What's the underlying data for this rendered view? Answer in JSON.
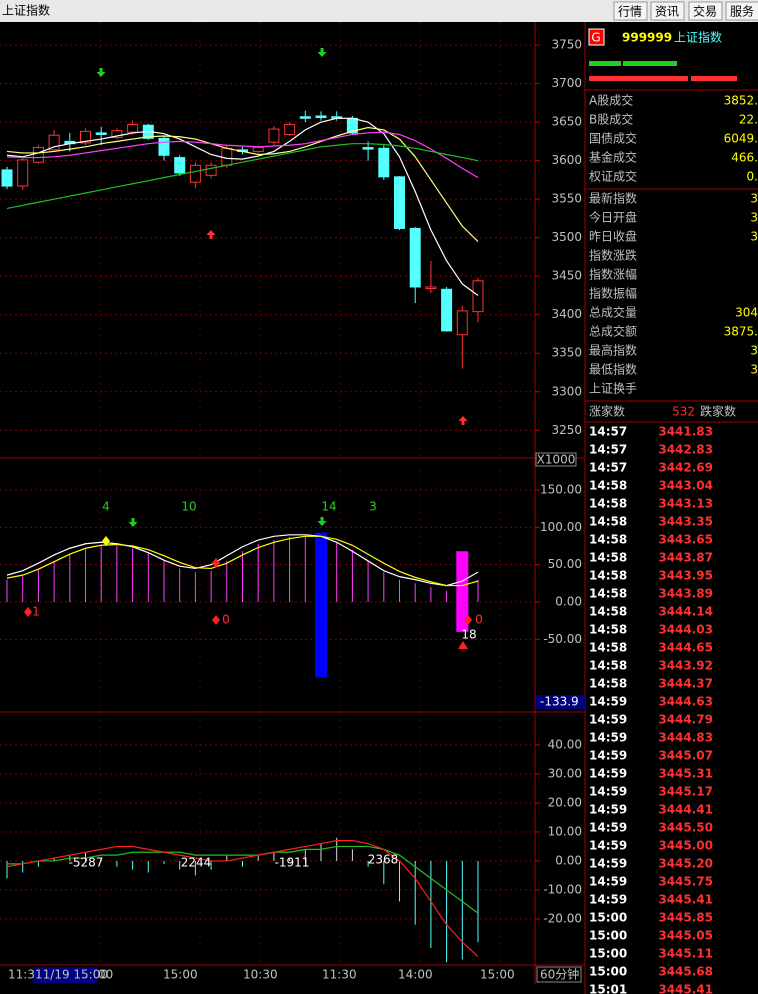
{
  "header": {
    "title": "上证指数",
    "buttons": [
      "行情",
      "资讯",
      "交易",
      "服务"
    ]
  },
  "chart_data": [
    {
      "type": "candlestick",
      "ylim": [
        3214,
        3780
      ],
      "yticks": [
        3250,
        3300,
        3350,
        3400,
        3450,
        3500,
        3550,
        3600,
        3650,
        3700,
        3750
      ],
      "open": [
        3588,
        3567,
        3598,
        3614,
        3625,
        3623,
        3636,
        3630,
        3637,
        3646,
        3629,
        3604,
        3572,
        3581,
        3594,
        3614,
        3612,
        3624,
        3634,
        3657,
        3658,
        3657,
        3655,
        3617,
        3616,
        3579,
        3512,
        3434,
        3433,
        3374,
        3404
      ],
      "high": [
        3592,
        3605,
        3620,
        3640,
        3636,
        3642,
        3644,
        3642,
        3652,
        3648,
        3632,
        3607,
        3598,
        3598,
        3620,
        3618,
        3620,
        3645,
        3650,
        3665,
        3664,
        3664,
        3658,
        3625,
        3620,
        3580,
        3514,
        3470,
        3436,
        3412,
        3448
      ],
      "low": [
        3563,
        3562,
        3596,
        3612,
        3612,
        3620,
        3620,
        3628,
        3634,
        3627,
        3600,
        3580,
        3564,
        3577,
        3590,
        3608,
        3610,
        3620,
        3632,
        3650,
        3652,
        3652,
        3634,
        3600,
        3575,
        3510,
        3415,
        3428,
        3378,
        3330,
        3390
      ],
      "close": [
        3567,
        3601,
        3617,
        3633,
        3622,
        3638,
        3634,
        3639,
        3647,
        3629,
        3607,
        3584,
        3594,
        3594,
        3616,
        3612,
        3617,
        3641,
        3647,
        3655,
        3656,
        3655,
        3636,
        3615,
        3579,
        3512,
        3436,
        3436,
        3379,
        3405,
        3444
      ],
      "up_color": "#ff3232",
      "down_color": "#54ffff",
      "series": [
        {
          "color": "#ffffff",
          "values": [
            3607,
            3605,
            3610,
            3618,
            3622,
            3625,
            3628,
            3632,
            3636,
            3638,
            3635,
            3628,
            3618,
            3608,
            3603,
            3602,
            3606,
            3612,
            3625,
            3640,
            3650,
            3655,
            3655,
            3650,
            3635,
            3605,
            3560,
            3510,
            3470,
            3440,
            3425
          ]
        },
        {
          "color": "#ffff80",
          "values": [
            3612,
            3610,
            3610,
            3612,
            3615,
            3618,
            3622,
            3625,
            3628,
            3631,
            3632,
            3631,
            3628,
            3622,
            3616,
            3612,
            3608,
            3609,
            3612,
            3618,
            3625,
            3632,
            3638,
            3643,
            3640,
            3628,
            3605,
            3575,
            3545,
            3515,
            3495
          ]
        },
        {
          "color": "#ff40ff",
          "values": [
            3605,
            3604,
            3604,
            3605,
            3607,
            3610,
            3613,
            3616,
            3619,
            3622,
            3624,
            3625,
            3624,
            3622,
            3620,
            3619,
            3618,
            3619,
            3620,
            3622,
            3626,
            3630,
            3634,
            3636,
            3637,
            3634,
            3626,
            3615,
            3603,
            3590,
            3578
          ]
        },
        {
          "color": "#20c020",
          "values": [
            3538,
            3542,
            3546,
            3550,
            3554,
            3558,
            3562,
            3566,
            3570,
            3574,
            3578,
            3582,
            3586,
            3590,
            3594,
            3598,
            3602,
            3606,
            3610,
            3614,
            3618,
            3620,
            3622,
            3622,
            3621,
            3619,
            3616,
            3612,
            3608,
            3604,
            3600
          ]
        }
      ]
    },
    {
      "type": "oscillator",
      "scale_label": "X1000",
      "ylim": [
        -147.3,
        176.8
      ],
      "yticks": [
        {
          "value": 150,
          "label": "150.00"
        },
        {
          "value": 100,
          "label": "100.00"
        },
        {
          "value": 50,
          "label": "50.00"
        },
        {
          "value": 0,
          "label": "0.00"
        },
        {
          "value": -50,
          "label": "-50.00"
        }
      ],
      "cursor": {
        "value": -133.9,
        "label": "-133.9"
      },
      "values": [
        30,
        35,
        45,
        55,
        65,
        72,
        75,
        75,
        72,
        65,
        55,
        45,
        40,
        42,
        55,
        68,
        78,
        83,
        87,
        88,
        87,
        80,
        70,
        55,
        40,
        30,
        25,
        20,
        15,
        20,
        30
      ],
      "color": "#ff40ff",
      "spans": [
        {
          "index": 20,
          "range": [
            93,
            -101
          ],
          "color": "#0000ff"
        },
        {
          "index": 29,
          "range": [
            68,
            -40
          ],
          "color": "#ff00ff"
        }
      ],
      "series": [
        {
          "color": "#ffffff",
          "values": [
            36,
            42,
            52,
            63,
            72,
            78,
            80,
            78,
            74,
            66,
            56,
            48,
            45,
            50,
            62,
            74,
            83,
            88,
            90,
            90,
            88,
            80,
            68,
            55,
            42,
            34,
            30,
            25,
            22,
            28,
            40
          ]
        },
        {
          "color": "#ffff00",
          "values": [
            32,
            36,
            44,
            54,
            64,
            72,
            76,
            77,
            75,
            70,
            62,
            53,
            46,
            45,
            52,
            63,
            73,
            80,
            85,
            88,
            88,
            84,
            76,
            64,
            52,
            41,
            33,
            27,
            22,
            22,
            28
          ]
        }
      ],
      "annotations": [
        4,
        10,
        14,
        3,
        1,
        0,
        0,
        18
      ]
    },
    {
      "type": "macd",
      "ylim": [
        -35.9,
        50.7
      ],
      "yticks": [
        {
          "value": 40,
          "label": "40.00"
        },
        {
          "value": 30,
          "label": "30.00"
        },
        {
          "value": 20,
          "label": "20.00"
        },
        {
          "value": 10,
          "label": "10.00"
        },
        {
          "value": 0,
          "label": "0.00"
        },
        {
          "value": -10,
          "label": "-10.00"
        },
        {
          "value": -20,
          "label": "-20.00"
        }
      ],
      "values": [
        -6,
        -4,
        -2,
        1,
        2,
        3,
        1,
        -2,
        -3,
        -4,
        -1,
        -3,
        -5,
        -3,
        2,
        -2,
        2,
        3,
        1,
        4,
        6,
        8,
        4,
        -2,
        -8,
        -14,
        -22,
        -30,
        -35,
        -34,
        -28
      ],
      "series": [
        {
          "color": "#20c020",
          "values": [
            -1,
            -1,
            0,
            0,
            1,
            1,
            2,
            2,
            3,
            3,
            3,
            3,
            2,
            2,
            2,
            2,
            2,
            3,
            3,
            4,
            4,
            5,
            5,
            5,
            4,
            2,
            -2,
            -6,
            -10,
            -14,
            -18
          ]
        },
        {
          "color": "#ff2020",
          "values": [
            -2,
            -1,
            0,
            1,
            2,
            3,
            4,
            5,
            5,
            4,
            3,
            2,
            1,
            0,
            0,
            1,
            2,
            3,
            4,
            5,
            6,
            7,
            7,
            6,
            4,
            0,
            -6,
            -14,
            -22,
            -28,
            -33
          ]
        }
      ],
      "annotations": [
        -5287,
        2244,
        -1911,
        2368
      ]
    }
  ],
  "time_axis": {
    "labels": [
      "11:3",
      "11/19 15:00",
      "00",
      "15:00",
      "10:30",
      "11:30",
      "14:00",
      "15:00"
    ],
    "period": "60分钟"
  },
  "panel": {
    "badge": "G",
    "code": "999999",
    "name": "上证指数",
    "trade_rows": [
      {
        "label": "A股成交",
        "value": "3852."
      },
      {
        "label": "B股成交",
        "value": "22."
      },
      {
        "label": "国债成交",
        "value": "6049."
      },
      {
        "label": "基金成交",
        "value": "466."
      },
      {
        "label": "权证成交",
        "value": "0."
      }
    ],
    "quote_rows": [
      {
        "label": "最新指数",
        "value": "3"
      },
      {
        "label": "今日开盘",
        "value": "3"
      },
      {
        "label": "昨日收盘",
        "value": "3"
      },
      {
        "label": "指数涨跌",
        "value": ""
      },
      {
        "label": "指数涨幅",
        "value": ""
      },
      {
        "label": "指数振幅",
        "value": ""
      },
      {
        "label": "总成交量",
        "value": "304"
      },
      {
        "label": "总成交额",
        "value": "3875."
      },
      {
        "label": "最高指数",
        "value": "3"
      },
      {
        "label": "最低指数",
        "value": "3"
      },
      {
        "label": "上证换手",
        "value": ""
      }
    ],
    "breadth": {
      "up_label": "涨家数",
      "up": 532,
      "down_label": "跌家数"
    },
    "ticks": [
      [
        "14:57",
        "3441.83"
      ],
      [
        "14:57",
        "3442.83"
      ],
      [
        "14:57",
        "3442.69"
      ],
      [
        "14:58",
        "3443.04"
      ],
      [
        "14:58",
        "3443.13"
      ],
      [
        "14:58",
        "3443.35"
      ],
      [
        "14:58",
        "3443.65"
      ],
      [
        "14:58",
        "3443.87"
      ],
      [
        "14:58",
        "3443.95"
      ],
      [
        "14:58",
        "3443.89"
      ],
      [
        "14:58",
        "3444.14"
      ],
      [
        "14:58",
        "3444.03"
      ],
      [
        "14:58",
        "3444.65"
      ],
      [
        "14:58",
        "3443.92"
      ],
      [
        "14:58",
        "3444.37"
      ],
      [
        "14:59",
        "3444.63"
      ],
      [
        "14:59",
        "3444.79"
      ],
      [
        "14:59",
        "3444.83"
      ],
      [
        "14:59",
        "3445.07"
      ],
      [
        "14:59",
        "3445.31"
      ],
      [
        "14:59",
        "3445.17"
      ],
      [
        "14:59",
        "3444.41"
      ],
      [
        "14:59",
        "3445.50"
      ],
      [
        "14:59",
        "3445.00"
      ],
      [
        "14:59",
        "3445.20"
      ],
      [
        "14:59",
        "3445.75"
      ],
      [
        "14:59",
        "3445.41"
      ],
      [
        "15:00",
        "3445.85"
      ],
      [
        "15:00",
        "3445.05"
      ],
      [
        "15:00",
        "3445.11"
      ],
      [
        "15:00",
        "3445.68"
      ],
      [
        "15:01",
        "3445.41"
      ]
    ]
  }
}
